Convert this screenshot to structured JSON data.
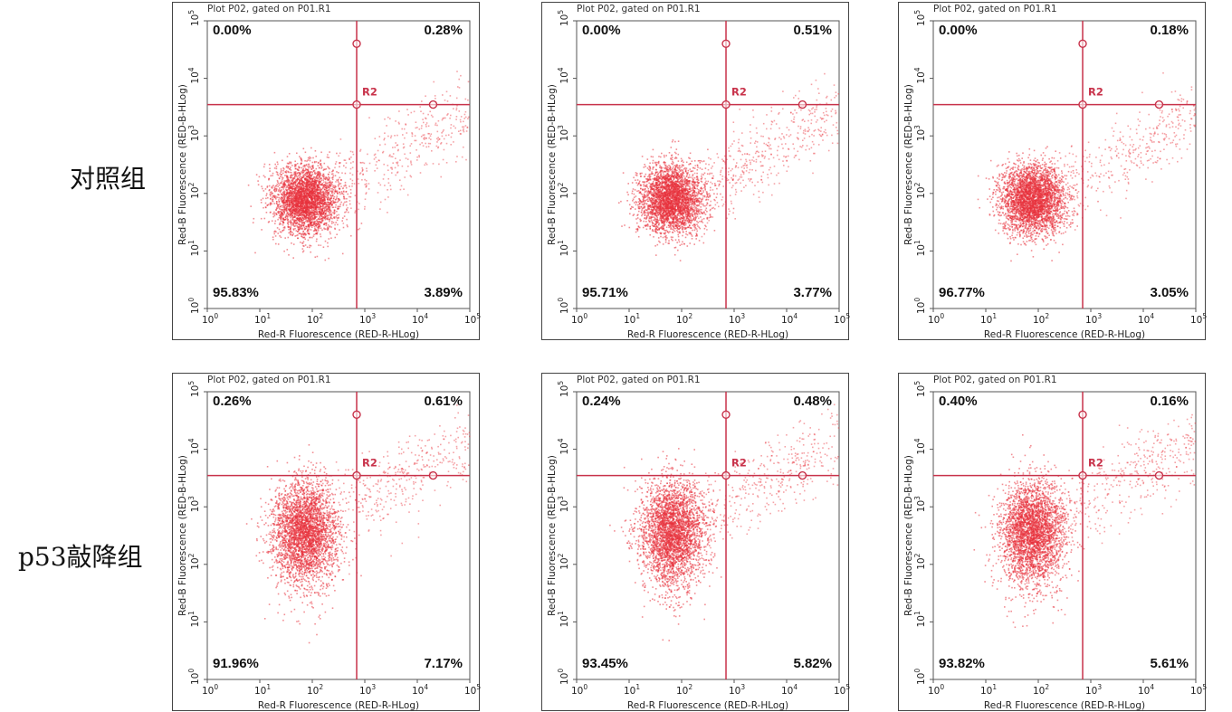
{
  "row_labels": [
    "对照组",
    "p53敲降组"
  ],
  "colors": {
    "dots": "#e8323c",
    "gate": "#c8324a",
    "gate_label": "#c8324a",
    "frame": "#444444"
  },
  "chart_data": [
    {
      "type": "scatter",
      "title": "Plot P02, gated on P01.R1",
      "xlabel": "Red-R Fluorescence (RED-R-HLog)",
      "ylabel": "Red-B Fluorescence (RED-B-HLog)",
      "xscale": "log",
      "yscale": "log",
      "xlim": [
        1,
        100000
      ],
      "ylim": [
        1,
        100000
      ],
      "x_ticks": [
        "10",
        "10",
        "10",
        "10",
        "10",
        "10"
      ],
      "x_tick_exp": [
        "0",
        "1",
        "2",
        "3",
        "4",
        "5"
      ],
      "y_ticks": [
        "10",
        "10",
        "10",
        "10",
        "10",
        "10"
      ],
      "y_tick_exp": [
        "0",
        "1",
        "2",
        "3",
        "4",
        "5"
      ],
      "gate_name": "R2",
      "quadrant_percent": {
        "upper_left": "0.00%",
        "upper_right": "0.28%",
        "lower_left": "95.83%",
        "lower_right": "3.89%"
      },
      "cluster": {
        "x_center": 70,
        "y_center": 80
      },
      "gate_x": 700,
      "gate_y": 3500
    },
    {
      "type": "scatter",
      "title": "Plot P02, gated on P01.R1",
      "xlabel": "Red-R Fluorescence (RED-R-HLog)",
      "ylabel": "Red-B Fluorescence (RED-B-HLog)",
      "xscale": "log",
      "yscale": "log",
      "xlim": [
        1,
        100000
      ],
      "ylim": [
        1,
        100000
      ],
      "x_ticks": [
        "10",
        "10",
        "10",
        "10",
        "10",
        "10"
      ],
      "x_tick_exp": [
        "0",
        "1",
        "2",
        "3",
        "4",
        "5"
      ],
      "y_ticks": [
        "10",
        "10",
        "10",
        "10",
        "10",
        "10"
      ],
      "y_tick_exp": [
        "0",
        "1",
        "2",
        "3",
        "4",
        "5"
      ],
      "gate_name": "R2",
      "quadrant_percent": {
        "upper_left": "0.00%",
        "upper_right": "0.51%",
        "lower_left": "95.71%",
        "lower_right": "3.77%"
      },
      "cluster": {
        "x_center": 60,
        "y_center": 80
      },
      "gate_x": 700,
      "gate_y": 3500
    },
    {
      "type": "scatter",
      "title": "Plot P02, gated on P01.R1",
      "xlabel": "Red-R Fluorescence (RED-R-HLog)",
      "ylabel": "Red-B Fluorescence (RED-B-HLog)",
      "xscale": "log",
      "yscale": "log",
      "xlim": [
        1,
        100000
      ],
      "ylim": [
        1,
        100000
      ],
      "x_ticks": [
        "10",
        "10",
        "10",
        "10",
        "10",
        "10"
      ],
      "x_tick_exp": [
        "0",
        "1",
        "2",
        "3",
        "4",
        "5"
      ],
      "y_ticks": [
        "10",
        "10",
        "10",
        "10",
        "10",
        "10"
      ],
      "y_tick_exp": [
        "0",
        "1",
        "2",
        "3",
        "4",
        "5"
      ],
      "gate_name": "R2",
      "quadrant_percent": {
        "upper_left": "0.00%",
        "upper_right": "0.18%",
        "lower_left": "96.77%",
        "lower_right": "3.05%"
      },
      "cluster": {
        "x_center": 75,
        "y_center": 80
      },
      "gate_x": 700,
      "gate_y": 3500
    },
    {
      "type": "scatter",
      "title": "Plot P02, gated on P01.R1",
      "xlabel": "Red-R Fluorescence (RED-R-HLog)",
      "ylabel": "Red-B Fluorescence (RED-B-HLog)",
      "xscale": "log",
      "yscale": "log",
      "xlim": [
        1,
        100000
      ],
      "ylim": [
        1,
        100000
      ],
      "x_ticks": [
        "10",
        "10",
        "10",
        "10",
        "10",
        "10"
      ],
      "x_tick_exp": [
        "0",
        "1",
        "2",
        "3",
        "4",
        "5"
      ],
      "y_ticks": [
        "10",
        "10",
        "10",
        "10",
        "10",
        "10"
      ],
      "y_tick_exp": [
        "0",
        "1",
        "2",
        "3",
        "4",
        "5"
      ],
      "gate_name": "R2",
      "quadrant_percent": {
        "upper_left": "0.26%",
        "upper_right": "0.61%",
        "lower_left": "91.96%",
        "lower_right": "7.17%"
      },
      "cluster": {
        "x_center": 70,
        "y_center": 450
      },
      "gate_x": 700,
      "gate_y": 3500
    },
    {
      "type": "scatter",
      "title": "Plot P02, gated on P01.R1",
      "xlabel": "Red-R Fluorescence (RED-R-HLog)",
      "ylabel": "Red-B Fluorescence (RED-B-HLog)",
      "xscale": "log",
      "yscale": "log",
      "xlim": [
        1,
        100000
      ],
      "ylim": [
        1,
        100000
      ],
      "x_ticks": [
        "10",
        "10",
        "10",
        "10",
        "10",
        "10"
      ],
      "x_tick_exp": [
        "0",
        "1",
        "2",
        "3",
        "4",
        "5"
      ],
      "y_ticks": [
        "10",
        "10",
        "10",
        "10",
        "10",
        "10"
      ],
      "y_tick_exp": [
        "0",
        "1",
        "2",
        "3",
        "4",
        "5"
      ],
      "gate_name": "R2",
      "quadrant_percent": {
        "upper_left": "0.24%",
        "upper_right": "0.48%",
        "lower_left": "93.45%",
        "lower_right": "5.82%"
      },
      "cluster": {
        "x_center": 65,
        "y_center": 450
      },
      "gate_x": 700,
      "gate_y": 3500
    },
    {
      "type": "scatter",
      "title": "Plot P02, gated on P01.R1",
      "xlabel": "Red-R Fluorescence (RED-R-HLog)",
      "ylabel": "Red-B Fluorescence (RED-B-HLog)",
      "xscale": "log",
      "yscale": "log",
      "xlim": [
        1,
        100000
      ],
      "ylim": [
        1,
        100000
      ],
      "x_ticks": [
        "10",
        "10",
        "10",
        "10",
        "10",
        "10"
      ],
      "x_tick_exp": [
        "0",
        "1",
        "2",
        "3",
        "4",
        "5"
      ],
      "y_ticks": [
        "10",
        "10",
        "10",
        "10",
        "10",
        "10"
      ],
      "y_tick_exp": [
        "0",
        "1",
        "2",
        "3",
        "4",
        "5"
      ],
      "gate_name": "R2",
      "quadrant_percent": {
        "upper_left": "0.40%",
        "upper_right": "0.16%",
        "lower_left": "93.82%",
        "lower_right": "5.61%"
      },
      "cluster": {
        "x_center": 75,
        "y_center": 450
      },
      "gate_x": 700,
      "gate_y": 3500
    }
  ]
}
